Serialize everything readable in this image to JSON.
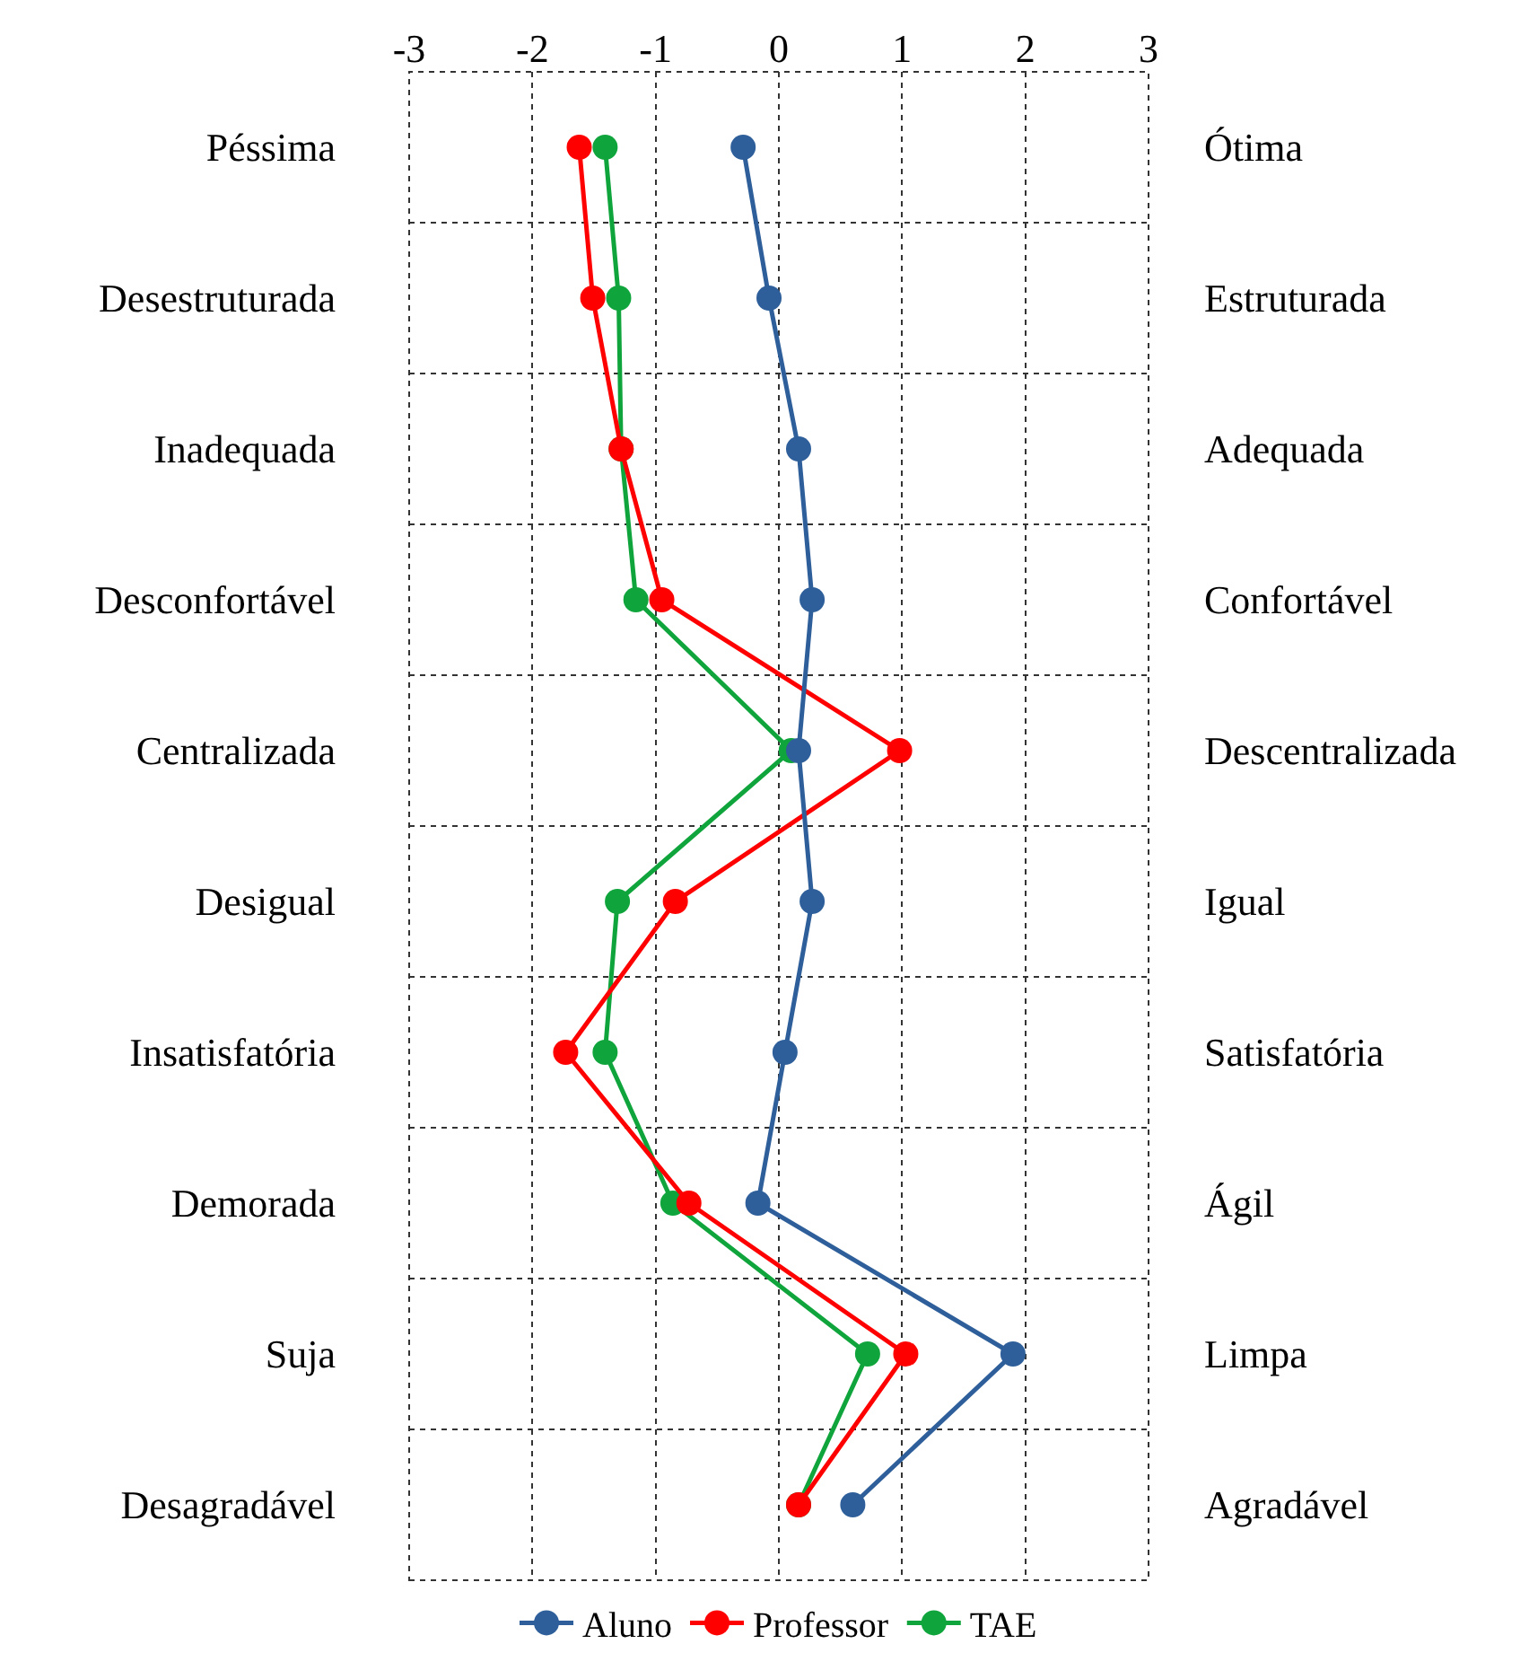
{
  "chart_data": {
    "type": "line",
    "orientation": "horizontal",
    "categories": [
      "Péssima",
      "Desestruturada",
      "Inadequada",
      "Desconfortável",
      "Centralizada",
      "Desigual",
      "Insatisfatória",
      "Demorada",
      "Suja",
      "Desagradável"
    ],
    "y2_categories": [
      "Ótima",
      "Estruturada",
      "Adequada",
      "Confortável",
      "Descentralizada",
      "Igual",
      "Satisfatória",
      "Ágil",
      "Limpa",
      "Agradável"
    ],
    "series": [
      {
        "name": "Aluno",
        "color": "#2e5f9a",
        "values": [
          -0.29,
          -0.08,
          0.16,
          0.27,
          0.16,
          0.27,
          0.05,
          -0.17,
          1.9,
          0.6
        ]
      },
      {
        "name": "Professor",
        "color": "#ff0000",
        "values": [
          -1.62,
          -1.51,
          -1.28,
          -0.95,
          0.98,
          -0.84,
          -1.73,
          -0.73,
          1.03,
          0.16
        ]
      },
      {
        "name": "TAE",
        "color": "#10a53c",
        "values": [
          -1.41,
          -1.3,
          -1.28,
          -1.16,
          0.1,
          -1.31,
          -1.41,
          -0.86,
          0.72,
          0.16
        ]
      }
    ],
    "xlim": [
      -3,
      3
    ],
    "xticks": [
      -3,
      -2,
      -1,
      0,
      1,
      2,
      3
    ],
    "grid": true,
    "legend": "bottom",
    "marker": "circle",
    "line_style": "solid"
  }
}
